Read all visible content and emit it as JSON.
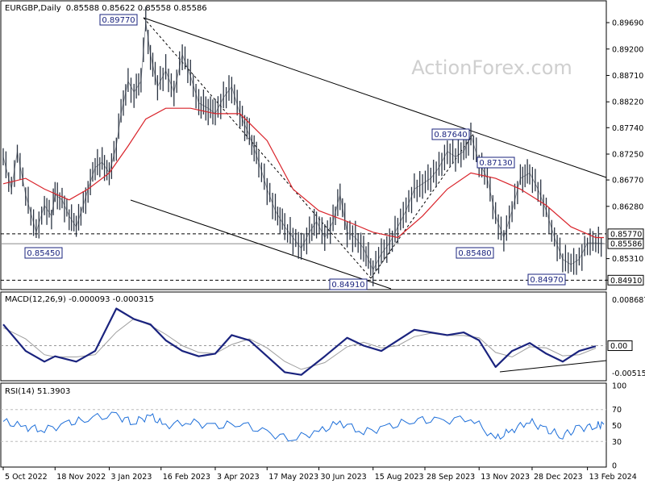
{
  "chart_data": {
    "type": "candlestick",
    "instrument": "EURGBP",
    "timeframe": "Daily",
    "ohlc_header": "0.85588 0.85622 0.85558 0.85586",
    "watermark": "ActionForex.com",
    "colors": {
      "price": "#2b3442",
      "ma": "#d9232a",
      "macd": "#1a237e",
      "signal": "#9e9e9e",
      "rsi": "#1e6fd9",
      "frame": "#000000",
      "watermark": "#cfcfcf"
    },
    "x_axis": {
      "range": [
        "2022-10-05",
        "2024-02-29"
      ],
      "tick_labels": [
        {
          "date": "2022-10-05",
          "label": "5 Oct 2022"
        },
        {
          "date": "2022-11-18",
          "label": "18 Nov 2022"
        },
        {
          "date": "2023-01-03",
          "label": "3 Jan 2023"
        },
        {
          "date": "2023-02-16",
          "label": "16 Feb 2023"
        },
        {
          "date": "2023-04-03",
          "label": "3 Apr 2023"
        },
        {
          "date": "2023-05-17",
          "label": "17 May 2023"
        },
        {
          "date": "2023-06-30",
          "label": "30 Jun 2023"
        },
        {
          "date": "2023-08-15",
          "label": "15 Aug 2023"
        },
        {
          "date": "2023-09-28",
          "label": "28 Sep 2023"
        },
        {
          "date": "2023-11-13",
          "label": "13 Nov 2023"
        },
        {
          "date": "2023-12-28",
          "label": "28 Dec 2023"
        },
        {
          "date": "2024-02-13",
          "label": "13 Feb 2024"
        }
      ]
    },
    "price_panel": {
      "title": "EURGBP,Daily",
      "ylim": [
        0.8475,
        0.9005
      ],
      "y_ticks": [
        "0.89690",
        "0.89200",
        "0.88710",
        "0.88220",
        "0.87740",
        "0.87250",
        "0.86770",
        "0.86280",
        "0.85310",
        "0.84910"
      ],
      "current_price": {
        "value": 0.85586,
        "label": "0.85586"
      },
      "series": [
        {
          "name": "price",
          "points": [
            [
              "2022-10-05",
              0.872
            ],
            [
              "2022-10-12",
              0.866
            ],
            [
              "2022-10-17",
              0.873
            ],
            [
              "2022-10-24",
              0.865
            ],
            [
              "2022-11-02",
              0.858
            ],
            [
              "2022-11-09",
              0.863
            ],
            [
              "2022-11-15",
              0.861
            ],
            [
              "2022-11-18",
              0.865
            ],
            [
              "2022-11-24",
              0.864
            ],
            [
              "2022-11-30",
              0.861
            ],
            [
              "2022-12-06",
              0.859
            ],
            [
              "2022-12-12",
              0.863
            ],
            [
              "2022-12-16",
              0.866
            ],
            [
              "2022-12-22",
              0.87
            ],
            [
              "2022-12-28",
              0.871
            ],
            [
              "2023-01-03",
              0.869
            ],
            [
              "2023-01-09",
              0.874
            ],
            [
              "2023-01-13",
              0.88
            ],
            [
              "2023-01-19",
              0.886
            ],
            [
              "2023-01-24",
              0.884
            ],
            [
              "2023-01-30",
              0.886
            ],
            [
              "2023-02-03",
              0.897
            ],
            [
              "2023-02-07",
              0.891
            ],
            [
              "2023-02-13",
              0.885
            ],
            [
              "2023-02-20",
              0.888
            ],
            [
              "2023-02-27",
              0.884
            ],
            [
              "2023-03-06",
              0.891
            ],
            [
              "2023-03-13",
              0.887
            ],
            [
              "2023-03-20",
              0.882
            ],
            [
              "2023-03-28",
              0.881
            ],
            [
              "2023-04-03",
              0.88
            ],
            [
              "2023-04-10",
              0.883
            ],
            [
              "2023-04-17",
              0.885
            ],
            [
              "2023-04-24",
              0.88
            ],
            [
              "2023-05-02",
              0.876
            ],
            [
              "2023-05-10",
              0.871
            ],
            [
              "2023-05-17",
              0.866
            ],
            [
              "2023-05-24",
              0.862
            ],
            [
              "2023-06-01",
              0.859
            ],
            [
              "2023-06-08",
              0.857
            ],
            [
              "2023-06-15",
              0.855
            ],
            [
              "2023-06-22",
              0.858
            ],
            [
              "2023-06-28",
              0.86
            ],
            [
              "2023-07-05",
              0.857
            ],
            [
              "2023-07-12",
              0.86
            ],
            [
              "2023-07-18",
              0.865
            ],
            [
              "2023-07-24",
              0.858
            ],
            [
              "2023-07-31",
              0.857
            ],
            [
              "2023-08-07",
              0.855
            ],
            [
              "2023-08-15",
              0.851
            ],
            [
              "2023-08-22",
              0.854
            ],
            [
              "2023-08-29",
              0.856
            ],
            [
              "2023-09-05",
              0.859
            ],
            [
              "2023-09-12",
              0.862
            ],
            [
              "2023-09-19",
              0.866
            ],
            [
              "2023-09-26",
              0.867
            ],
            [
              "2023-10-03",
              0.868
            ],
            [
              "2023-10-10",
              0.87
            ],
            [
              "2023-10-17",
              0.873
            ],
            [
              "2023-10-24",
              0.872
            ],
            [
              "2023-10-31",
              0.873
            ],
            [
              "2023-11-06",
              0.876
            ],
            [
              "2023-11-13",
              0.871
            ],
            [
              "2023-11-20",
              0.868
            ],
            [
              "2023-11-27",
              0.861
            ],
            [
              "2023-12-04",
              0.857
            ],
            [
              "2023-12-11",
              0.862
            ],
            [
              "2023-12-18",
              0.868
            ],
            [
              "2023-12-26",
              0.869
            ],
            [
              "2024-01-02",
              0.866
            ],
            [
              "2024-01-09",
              0.862
            ],
            [
              "2024-01-16",
              0.857
            ],
            [
              "2024-01-23",
              0.853
            ],
            [
              "2024-01-30",
              0.852
            ],
            [
              "2024-02-06",
              0.853
            ],
            [
              "2024-02-13",
              0.856
            ],
            [
              "2024-02-20",
              0.856
            ],
            [
              "2024-02-27",
              0.8559
            ]
          ]
        },
        {
          "name": "moving average",
          "points": [
            [
              "2022-10-05",
              0.867
            ],
            [
              "2022-10-24",
              0.868
            ],
            [
              "2022-11-09",
              0.866
            ],
            [
              "2022-11-30",
              0.864
            ],
            [
              "2022-12-16",
              0.866
            ],
            [
              "2023-01-03",
              0.869
            ],
            [
              "2023-01-19",
              0.874
            ],
            [
              "2023-02-03",
              0.879
            ],
            [
              "2023-02-20",
              0.881
            ],
            [
              "2023-03-13",
              0.881
            ],
            [
              "2023-04-03",
              0.88
            ],
            [
              "2023-04-24",
              0.88
            ],
            [
              "2023-05-17",
              0.875
            ],
            [
              "2023-06-08",
              0.866
            ],
            [
              "2023-06-30",
              0.862
            ],
            [
              "2023-07-24",
              0.86
            ],
            [
              "2023-08-15",
              0.858
            ],
            [
              "2023-09-05",
              0.857
            ],
            [
              "2023-09-26",
              0.861
            ],
            [
              "2023-10-17",
              0.866
            ],
            [
              "2023-11-06",
              0.869
            ],
            [
              "2023-11-27",
              0.868
            ],
            [
              "2023-12-18",
              0.866
            ],
            [
              "2024-01-09",
              0.863
            ],
            [
              "2024-01-30",
              0.859
            ],
            [
              "2024-02-20",
              0.857
            ],
            [
              "2024-02-27",
              0.857
            ]
          ]
        }
      ],
      "annotations": [
        {
          "label": "0.89770",
          "date": "2023-02-03",
          "value": 0.8977
        },
        {
          "label": "0.85450",
          "date": "2022-11-15",
          "value": 0.8545
        },
        {
          "label": "0.84910",
          "date": "2023-07-24",
          "value": 0.8491
        },
        {
          "label": "0.87640",
          "date": "2023-11-06",
          "value": 0.8764
        },
        {
          "label": "0.87130",
          "date": "2023-12-18",
          "value": 0.8713
        },
        {
          "label": "0.85480",
          "date": "2023-11-27",
          "value": 0.8548
        },
        {
          "label": "0.84970",
          "date": "2024-01-16",
          "value": 0.8497
        }
      ],
      "horizontal_lines": [
        {
          "label": "0.85770",
          "value": 0.8577
        },
        {
          "label": "0.84910",
          "value": 0.8491
        }
      ]
    },
    "macd_panel": {
      "title": "MACD(12,26,9) -0.000093 -0.000315",
      "ylim": [
        -0.0063,
        0.0095
      ],
      "y_ticks": [
        "0.008687",
        "0.00",
        "-0.005156"
      ],
      "zero_label": "0.00",
      "series": [
        {
          "name": "macd",
          "points": [
            [
              "2022-10-05",
              0.004
            ],
            [
              "2022-10-24",
              -0.001
            ],
            [
              "2022-11-09",
              -0.003
            ],
            [
              "2022-11-18",
              -0.002
            ],
            [
              "2022-12-06",
              -0.003
            ],
            [
              "2022-12-22",
              -0.001
            ],
            [
              "2023-01-09",
              0.007
            ],
            [
              "2023-01-24",
              0.005
            ],
            [
              "2023-02-07",
              0.004
            ],
            [
              "2023-02-20",
              0.001
            ],
            [
              "2023-03-06",
              -0.001
            ],
            [
              "2023-03-20",
              -0.002
            ],
            [
              "2023-04-03",
              -0.0015
            ],
            [
              "2023-04-17",
              0.002
            ],
            [
              "2023-05-02",
              0.001
            ],
            [
              "2023-05-17",
              -0.002
            ],
            [
              "2023-06-01",
              -0.005
            ],
            [
              "2023-06-15",
              -0.0055
            ],
            [
              "2023-07-05",
              -0.002
            ],
            [
              "2023-07-24",
              0.0015
            ],
            [
              "2023-08-07",
              0.0
            ],
            [
              "2023-08-22",
              -0.001
            ],
            [
              "2023-09-05",
              0.001
            ],
            [
              "2023-09-19",
              0.003
            ],
            [
              "2023-10-03",
              0.0025
            ],
            [
              "2023-10-17",
              0.002
            ],
            [
              "2023-10-31",
              0.0025
            ],
            [
              "2023-11-13",
              0.001
            ],
            [
              "2023-11-27",
              -0.004
            ],
            [
              "2023-12-11",
              -0.001
            ],
            [
              "2023-12-26",
              0.0005
            ],
            [
              "2024-01-09",
              -0.0015
            ],
            [
              "2024-01-23",
              -0.003
            ],
            [
              "2024-02-06",
              -0.001
            ],
            [
              "2024-02-20",
              -0.0001
            ]
          ]
        }
      ]
    },
    "rsi_panel": {
      "title": "RSI(14) 51.3903",
      "ylim": [
        0,
        100
      ],
      "y_ticks": [
        "100",
        "70",
        "50",
        "30",
        "0"
      ],
      "series": [
        {
          "name": "rsi",
          "points": [
            [
              "2022-10-05",
              55
            ],
            [
              "2022-10-24",
              48
            ],
            [
              "2022-11-09",
              45
            ],
            [
              "2022-11-30",
              52
            ],
            [
              "2022-12-16",
              60
            ],
            [
              "2023-01-09",
              62
            ],
            [
              "2023-01-24",
              54
            ],
            [
              "2023-02-07",
              62
            ],
            [
              "2023-02-20",
              50
            ],
            [
              "2023-03-13",
              55
            ],
            [
              "2023-04-03",
              48
            ],
            [
              "2023-04-24",
              54
            ],
            [
              "2023-05-17",
              40
            ],
            [
              "2023-06-08",
              34
            ],
            [
              "2023-06-30",
              42
            ],
            [
              "2023-07-18",
              54
            ],
            [
              "2023-08-07",
              42
            ],
            [
              "2023-08-29",
              48
            ],
            [
              "2023-09-19",
              58
            ],
            [
              "2023-10-10",
              55
            ],
            [
              "2023-11-06",
              60
            ],
            [
              "2023-11-27",
              33
            ],
            [
              "2023-12-11",
              44
            ],
            [
              "2023-12-26",
              56
            ],
            [
              "2024-01-09",
              44
            ],
            [
              "2024-01-23",
              38
            ],
            [
              "2024-02-06",
              46
            ],
            [
              "2024-02-20",
              50
            ],
            [
              "2024-02-27",
              51.39
            ]
          ]
        }
      ]
    }
  }
}
